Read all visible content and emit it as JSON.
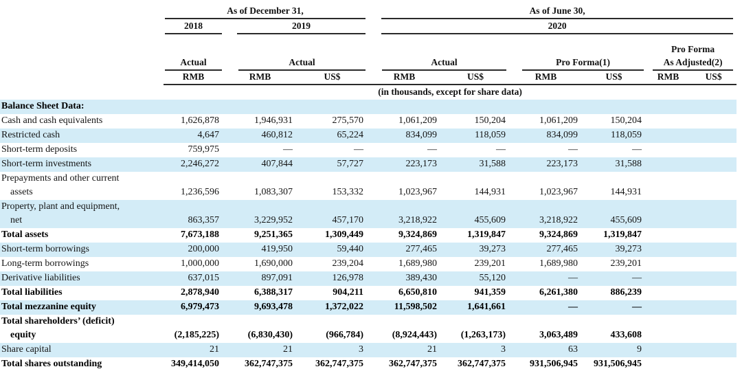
{
  "table": {
    "period_groups": [
      {
        "label": "As of December 31,"
      },
      {
        "label": "As of June 30,"
      }
    ],
    "year_groups": [
      {
        "label": "2018"
      },
      {
        "label": "2019"
      },
      {
        "label": "2020"
      }
    ],
    "scenario_groups": [
      {
        "label": "Actual"
      },
      {
        "label": "Actual"
      },
      {
        "label": "Actual"
      },
      {
        "label": "Pro Forma(1)"
      },
      {
        "label": "Pro Forma",
        "label2": "As Adjusted(2)"
      }
    ],
    "currency_headers": [
      "RMB",
      "RMB",
      "US$",
      "RMB",
      "US$",
      "RMB",
      "US$",
      "RMB",
      "US$"
    ],
    "units_note": "(in thousands, except for share data)",
    "rows": [
      {
        "label": "Balance Sheet Data:",
        "bold": true,
        "values": [
          "",
          "",
          "",
          "",
          "",
          "",
          "",
          "",
          ""
        ]
      },
      {
        "label": "Cash and cash equivalents",
        "values": [
          "1,626,878",
          "1,946,931",
          "275,570",
          "1,061,209",
          "150,204",
          "1,061,209",
          "150,204",
          "",
          ""
        ]
      },
      {
        "label": "Restricted cash",
        "values": [
          "4,647",
          "460,812",
          "65,224",
          "834,099",
          "118,059",
          "834,099",
          "118,059",
          "",
          ""
        ]
      },
      {
        "label": "Short-term deposits",
        "values": [
          "759,975",
          "—",
          "—",
          "—",
          "—",
          "—",
          "—",
          "",
          ""
        ]
      },
      {
        "label": "Short-term investments",
        "values": [
          "2,246,272",
          "407,844",
          "57,727",
          "223,173",
          "31,588",
          "223,173",
          "31,588",
          "",
          ""
        ]
      },
      {
        "label": "Prepayments and other current",
        "label2": "assets",
        "values": [
          "1,236,596",
          "1,083,307",
          "153,332",
          "1,023,967",
          "144,931",
          "1,023,967",
          "144,931",
          "",
          ""
        ]
      },
      {
        "label": "Property, plant and equipment,",
        "label2": "net",
        "values": [
          "863,357",
          "3,229,952",
          "457,170",
          "3,218,922",
          "455,609",
          "3,218,922",
          "455,609",
          "",
          ""
        ]
      },
      {
        "label": "Total assets",
        "bold": true,
        "values": [
          "7,673,188",
          "9,251,365",
          "1,309,449",
          "9,324,869",
          "1,319,847",
          "9,324,869",
          "1,319,847",
          "",
          ""
        ]
      },
      {
        "label": "Short-term borrowings",
        "values": [
          "200,000",
          "419,950",
          "59,440",
          "277,465",
          "39,273",
          "277,465",
          "39,273",
          "",
          ""
        ]
      },
      {
        "label": "Long-term borrowings",
        "values": [
          "1,000,000",
          "1,690,000",
          "239,204",
          "1,689,980",
          "239,201",
          "1,689,980",
          "239,201",
          "",
          ""
        ]
      },
      {
        "label": "Derivative liabilities",
        "values": [
          "637,015",
          "897,091",
          "126,978",
          "389,430",
          "55,120",
          "—",
          "—",
          "",
          ""
        ]
      },
      {
        "label": "Total liabilities",
        "bold": true,
        "values": [
          "2,878,940",
          "6,388,317",
          "904,211",
          "6,650,810",
          "941,359",
          "6,261,380",
          "886,239",
          "",
          ""
        ]
      },
      {
        "label": "Total mezzanine equity",
        "bold": true,
        "values": [
          "6,979,473",
          "9,693,478",
          "1,372,022",
          "11,598,502",
          "1,641,661",
          "—",
          "—",
          "",
          ""
        ]
      },
      {
        "label": "Total shareholders’ (deficit)",
        "label2": "equity",
        "bold": true,
        "values": [
          "(2,185,225)",
          "(6,830,430)",
          "(966,784)",
          "(8,924,443)",
          "(1,263,173)",
          "3,063,489",
          "433,608",
          "",
          ""
        ]
      },
      {
        "label": "Share capital",
        "values": [
          "21",
          "21",
          "3",
          "21",
          "3",
          "63",
          "9",
          "",
          ""
        ]
      },
      {
        "label": "Total shares outstanding",
        "bold": true,
        "values": [
          "349,414,050",
          "362,747,375",
          "362,747,375",
          "362,747,375",
          "362,747,375",
          "931,506,945",
          "931,506,945",
          "",
          ""
        ]
      }
    ],
    "colors": {
      "stripe": "#d3ecf7",
      "rule": "#2a2a2a",
      "text": "#141414"
    }
  }
}
